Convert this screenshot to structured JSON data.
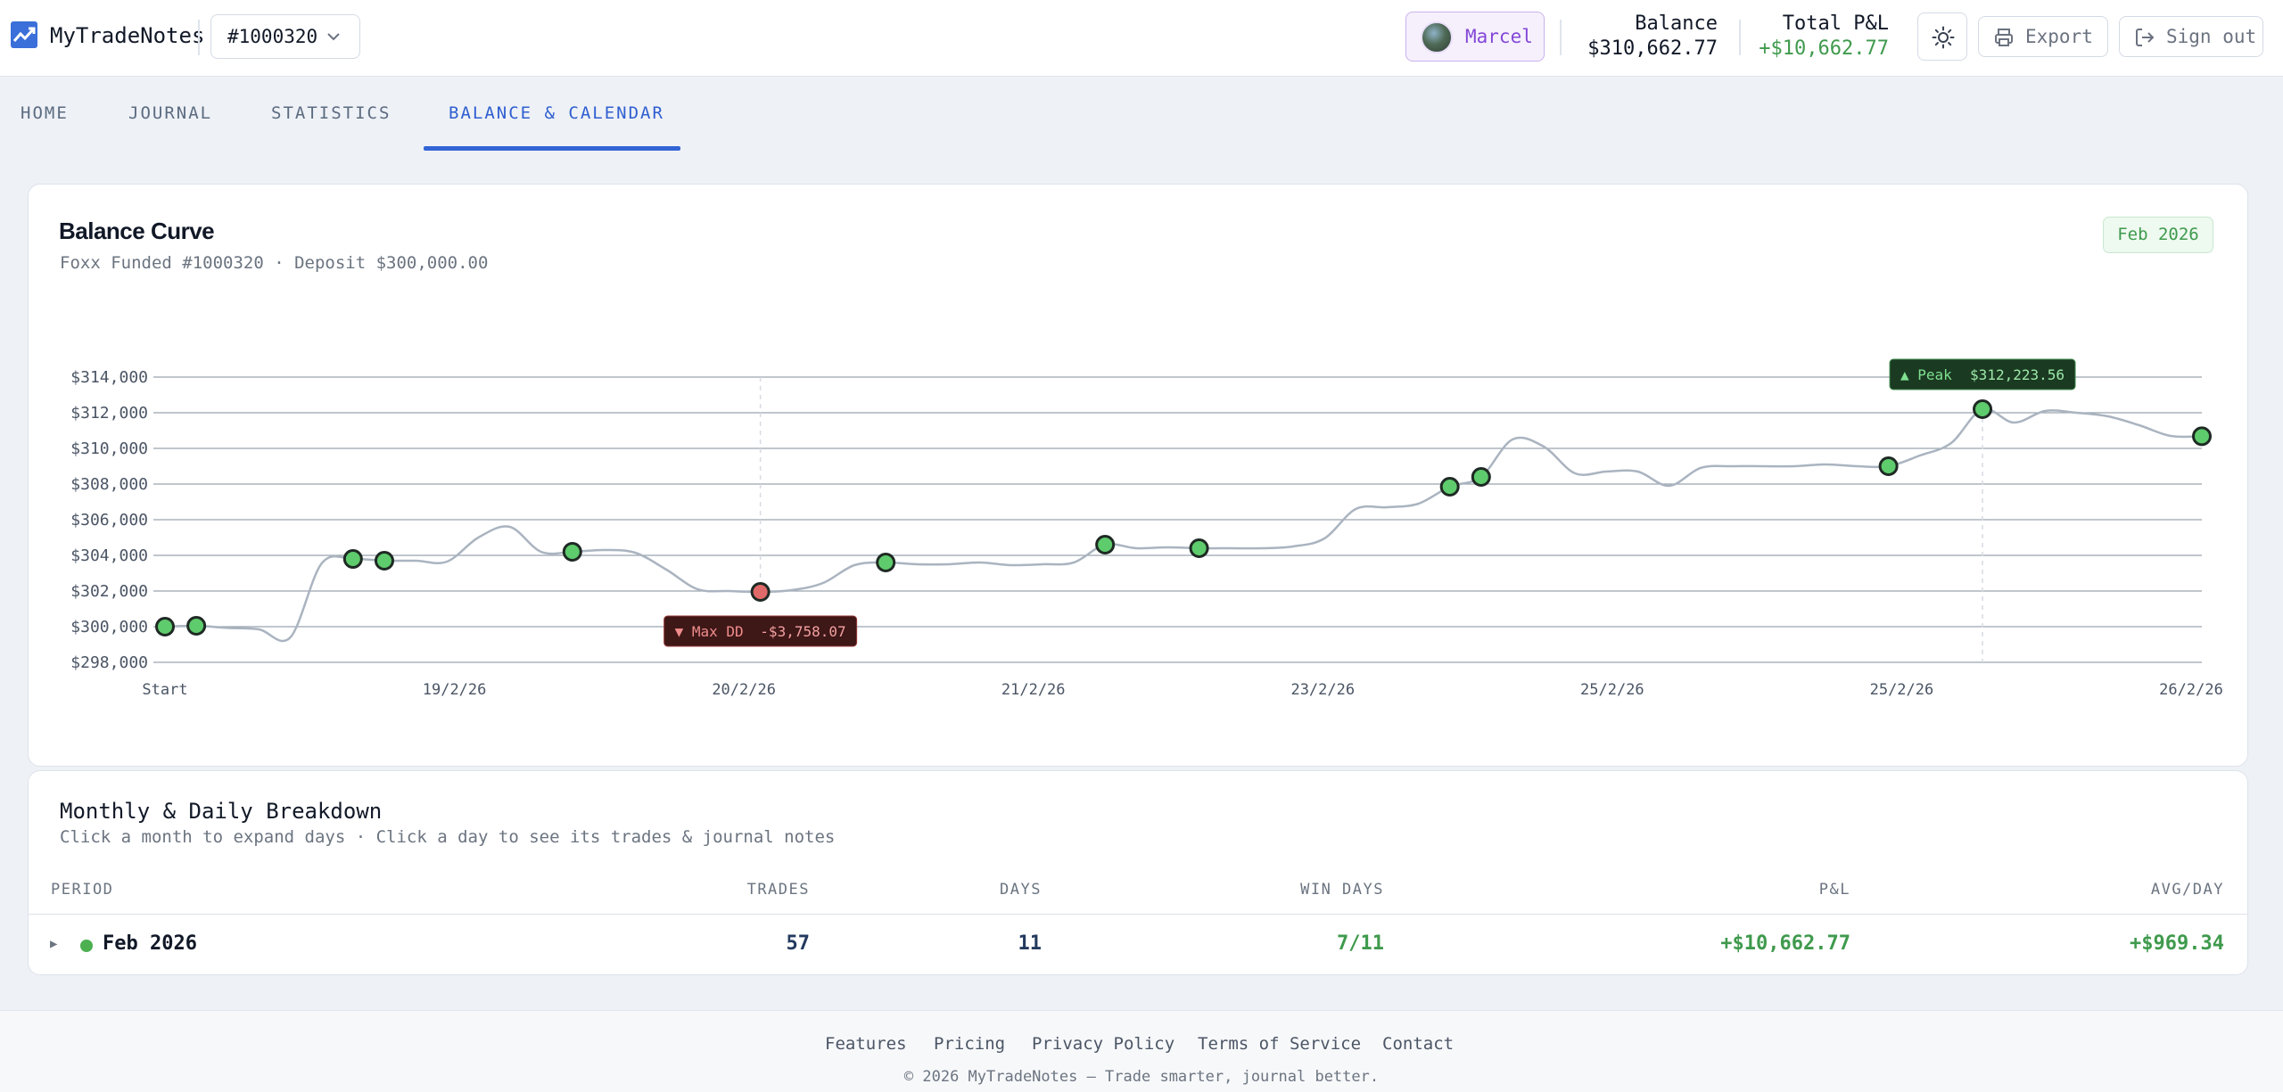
{
  "app": {
    "name": "MyTradeNotes"
  },
  "account": {
    "selected": "#1000320"
  },
  "user": {
    "name": "Marcel"
  },
  "stats": {
    "balance_label": "Balance",
    "balance_value": "$310,662.77",
    "pnl_label": "Total P&L",
    "pnl_value": "+$10,662.77"
  },
  "actions": {
    "export": "Export",
    "signout": "Sign out"
  },
  "tabs": [
    {
      "label": "HOME"
    },
    {
      "label": "JOURNAL"
    },
    {
      "label": "STATISTICS"
    },
    {
      "label": "BALANCE & CALENDAR"
    }
  ],
  "chart_card": {
    "title": "Balance Curve",
    "subtitle": "Foxx Funded #1000320 · Deposit $300,000.00",
    "badge": "Feb 2026"
  },
  "chart_data": {
    "type": "line",
    "title": "Balance Curve",
    "xlabel": "",
    "ylabel": "",
    "ylim": [
      298000,
      314000
    ],
    "yticks": [
      314000,
      312000,
      310000,
      308000,
      306000,
      304000,
      302000,
      300000,
      298000
    ],
    "ytick_labels": [
      "$314,000",
      "$312,000",
      "$310,000",
      "$308,000",
      "$306,000",
      "$304,000",
      "$302,000",
      "$300,000",
      "$298,000"
    ],
    "xtick_labels": [
      "Start",
      "19/2/26",
      "20/2/26",
      "21/2/26",
      "23/2/26",
      "25/2/26",
      "25/2/26",
      "26/2/26"
    ],
    "grid": true,
    "series": [
      {
        "values": [
          300000,
          300050,
          299930,
          299850,
          299400,
          303550,
          303800,
          303700,
          303700,
          303650,
          305000,
          305600,
          304200,
          304200,
          304300,
          304150,
          303200,
          302100,
          302000,
          301950,
          302050,
          302450,
          303450,
          303600,
          303500,
          303500,
          303600,
          303450,
          303500,
          303600,
          304600,
          304400,
          304450,
          304400,
          304400,
          304400,
          304500,
          304950,
          306600,
          306700,
          306900,
          307850,
          308400,
          310500,
          310100,
          308600,
          308700,
          308700,
          307900,
          308900,
          309000,
          309000,
          309000,
          309100,
          309000,
          309000,
          309600,
          310300,
          312200,
          311450,
          312100,
          312000,
          311800,
          311300,
          310700,
          310680
        ]
      }
    ],
    "points": [
      {
        "i": 0,
        "kind": "win"
      },
      {
        "i": 1,
        "kind": "win"
      },
      {
        "i": 6,
        "kind": "win"
      },
      {
        "i": 7,
        "kind": "win"
      },
      {
        "i": 13,
        "kind": "win"
      },
      {
        "i": 19,
        "kind": "dd"
      },
      {
        "i": 23,
        "kind": "win"
      },
      {
        "i": 30,
        "kind": "win"
      },
      {
        "i": 33,
        "kind": "win"
      },
      {
        "i": 41,
        "kind": "win"
      },
      {
        "i": 42,
        "kind": "win"
      },
      {
        "i": 55,
        "kind": "win"
      },
      {
        "i": 58,
        "kind": "win"
      },
      {
        "i": 65,
        "kind": "win"
      }
    ],
    "annotations": [
      {
        "label": "▲ Peak",
        "value": "$312,223.56",
        "point": 58,
        "kind": "peak"
      },
      {
        "label": "▼ Max DD",
        "value": "-$3,758.07",
        "point": 19,
        "kind": "dd"
      }
    ],
    "colors": {
      "line": "#aab4c0",
      "win": "#5ecb6c",
      "dd": "#e06a6a",
      "grid": "#9aa3ae",
      "peak_bg": "#1b3a22",
      "dd_bg": "#3e1717"
    }
  },
  "breakdown": {
    "title": "Monthly & Daily Breakdown",
    "subtitle": "Click a month to expand days · Click a day to see its trades & journal notes",
    "columns": [
      "PERIOD",
      "TRADES",
      "DAYS",
      "WIN DAYS",
      "P&L",
      "AVG/DAY"
    ],
    "rows": [
      {
        "period": "Feb 2026",
        "trades": "57",
        "days": "11",
        "win_days": "7/11",
        "pnl": "+$10,662.77",
        "avg": "+$969.34"
      }
    ]
  },
  "footer": {
    "links": [
      "Features",
      "Pricing",
      "Privacy Policy",
      "Terms of Service",
      "Contact"
    ],
    "copyright": "© 2026 MyTradeNotes — Trade smarter, journal better."
  }
}
